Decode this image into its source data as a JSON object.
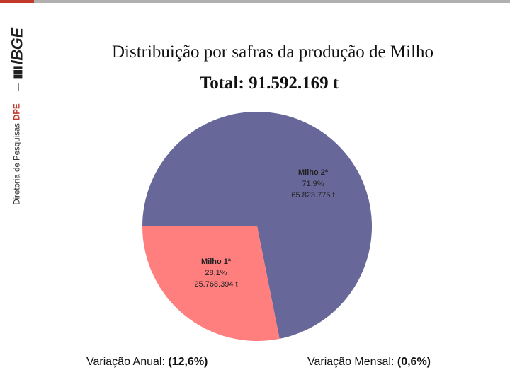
{
  "header": {
    "logo_text": "IBGE",
    "dept_label": "Diretoria de Pesquisas",
    "dept_code": "DPE"
  },
  "title": "Distribuição por safras da produção de Milho",
  "subtitle": "Total: 91.592.169 t",
  "colors": {
    "milho2": "#676799",
    "milho1": "#ff7f7f"
  },
  "chart_data": {
    "type": "pie",
    "title": "Distribuição por safras da produção de Milho",
    "subtitle": "Total: 91.592.169 t",
    "slices": [
      {
        "name": "Milho 2ª",
        "value": 65823775,
        "percent": 71.9,
        "percent_label": "71,9%",
        "value_label": "65.823.775 t",
        "color": "#676799"
      },
      {
        "name": "Milho 1ª",
        "value": 25768394,
        "percent": 28.1,
        "percent_label": "28,1%",
        "value_label": "25.768.394 t",
        "color": "#ff7f7f"
      }
    ]
  },
  "footer": {
    "annual_label": "Variação Anual: ",
    "annual_value": "(12,6%)",
    "monthly_label": "Variação Mensal: ",
    "monthly_value": "(0,6%)"
  }
}
